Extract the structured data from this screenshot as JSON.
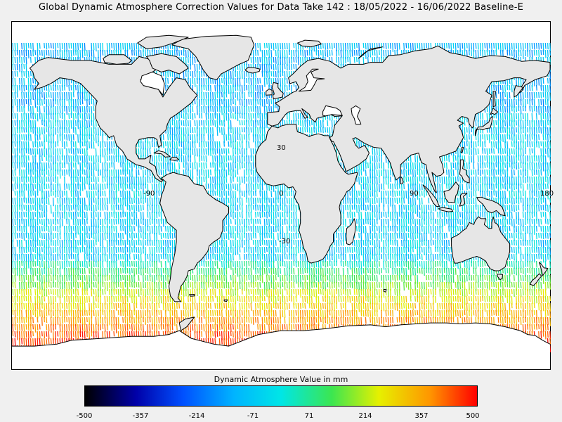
{
  "title": "Global Dynamic Atmosphere Correction Values for Data Take 142 : 18/05/2022 - 16/06/2022 Baseline-E",
  "map": {
    "projection": "equirectangular",
    "lon_range": [
      -180,
      180
    ],
    "lat_range": [
      -90,
      90
    ],
    "grid_labels": {
      "lon": [
        "-90",
        "0",
        "90",
        "180"
      ],
      "lat": [
        "30",
        "-30"
      ]
    },
    "land_color": "#e6e6e6",
    "no_data_color": "#ffffff",
    "coastline_color": "#000000"
  },
  "colorbar": {
    "title": "Dynamic Atmosphere Value in mm",
    "min": -500,
    "max": 500,
    "tick_labels": [
      "-500",
      "-357",
      "-214",
      "-71",
      "71",
      "214",
      "357",
      "500"
    ],
    "colors": [
      "#000000",
      "#0000a8",
      "#0050ff",
      "#00b4ff",
      "#00e6e6",
      "#3ce650",
      "#e6f000",
      "#ff9600",
      "#ff0000"
    ]
  }
}
